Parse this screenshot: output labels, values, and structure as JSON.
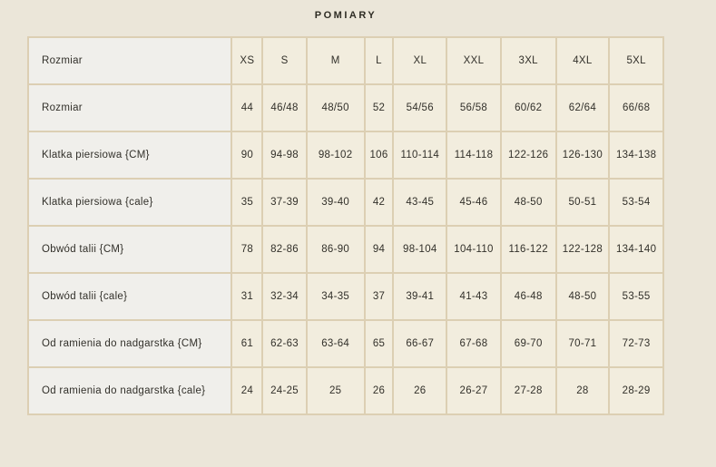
{
  "title": "POMIARY",
  "table": {
    "header": [
      "Rozmiar",
      "XS",
      "S",
      "M",
      "L",
      "XL",
      "XXL",
      "3XL",
      "4XL",
      "5XL"
    ],
    "rows": [
      {
        "label": "Rozmiar",
        "values": [
          "44",
          "46/48",
          "48/50",
          "52",
          "54/56",
          "56/58",
          "60/62",
          "62/64",
          "66/68"
        ]
      },
      {
        "label": "Klatka piersiowa {CM}",
        "values": [
          "90",
          "94-98",
          "98-102",
          "106",
          "110-114",
          "114-118",
          "122-126",
          "126-130",
          "134-138"
        ]
      },
      {
        "label": "Klatka piersiowa {cale}",
        "values": [
          "35",
          "37-39",
          "39-40",
          "42",
          "43-45",
          "45-46",
          "48-50",
          "50-51",
          "53-54"
        ]
      },
      {
        "label": "Obwód talii {CM}",
        "values": [
          "78",
          "82-86",
          "86-90",
          "94",
          "98-104",
          "104-110",
          "116-122",
          "122-128",
          "134-140"
        ]
      },
      {
        "label": "Obwód talii {cale}",
        "values": [
          "31",
          "32-34",
          "34-35",
          "37",
          "39-41",
          "41-43",
          "46-48",
          "48-50",
          "53-55"
        ]
      },
      {
        "label": "Od ramienia do nadgarstka {CM}",
        "values": [
          "61",
          "62-63",
          "63-64",
          "65",
          "66-67",
          "67-68",
          "69-70",
          "70-71",
          "72-73"
        ]
      },
      {
        "label": "Od ramienia do nadgarstka {cale}",
        "values": [
          "24",
          "24-25",
          "25",
          "26",
          "26",
          "26-27",
          "27-28",
          "28",
          "28-29"
        ]
      }
    ]
  },
  "colors": {
    "page_background": "#ebe6d9",
    "border": "#dccfb3",
    "label_cell_background": "#f0efeb",
    "data_cell_background": "#f2edde",
    "text": "#32302a"
  }
}
